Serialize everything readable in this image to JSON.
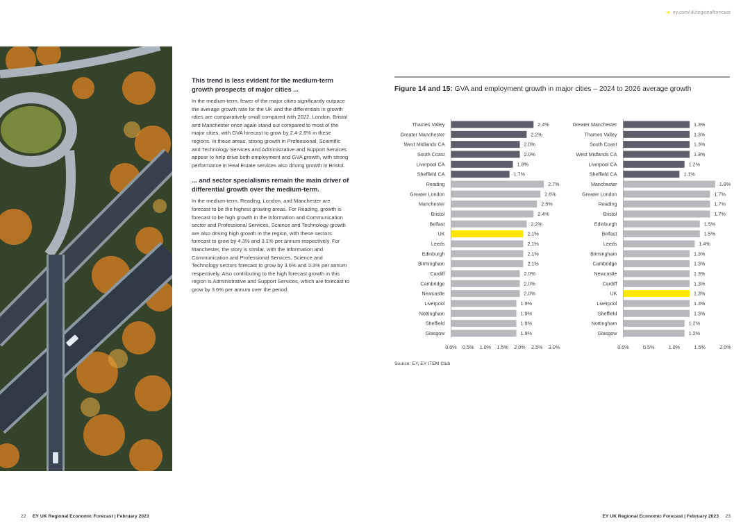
{
  "header": {
    "url": "ey.com/uk/regionalforecast"
  },
  "left_text": {
    "heading1": "This trend is less evident for the medium-term growth prospects of major cities ...",
    "para1": "In the medium-term, fewer of the major cities significantly outpace the average growth rate for the UK and the differentials in growth rates are comparatively small compared with 2022. London, Bristol and Manchester once again stand out compared to most of the major cities, with GVA forecast to grow by 2.4-2.6% in these regions. In these areas, strong growth in Professional, Scientific and Technology Services and Administrative and Support Services appear to help drive both employment and GVA growth, with strong performance in Real Estate services also driving growth in Bristol.",
    "heading2": "... and sector specialisms remain the main driver of differential growth over the medium-term.",
    "para2": "In the medium-term, Reading, London, and Manchester are forecast to be the highest growing areas. For Reading, growth is forecast to be high growth in the Information and Communication sector and Professional Services, Science and Technology growth are also driving high growth in the region, with these sectors forecast to grow by 4.3% and 3.1% per annum respectively. For Manchester, the story is similar, with the Information and Communication and Professional Services, Science and Technology sectors forecast to grow by 3.6% and 3.3% per annum respectively. Also contributing to the high forecast growth in this region is Administrative and Support Services, which are forecast to grow by 3.6% per annum over the period."
  },
  "figure": {
    "title_bold": "Figure 14 and 15:",
    "title_rest": "GVA and employment growth in major cities – 2024 to 2026 average growth",
    "source": "Source: EY, EY ITEM Club"
  },
  "colors": {
    "combined_authority": "#5b5e6b",
    "city": "#b9b9bd",
    "uk": "#ffe600",
    "accent": "#ffe600"
  },
  "chart_data": [
    {
      "type": "bar",
      "orientation": "horizontal",
      "title": "",
      "categories": [
        "Thames Valley",
        "Greater Manchester",
        "West Midlands CA",
        "South Coast",
        "Liverpool CA",
        "Sheffield CA",
        "Reading",
        "Greater London",
        "Manchester",
        "Bristol",
        "Belfast",
        "UK",
        "Leeds",
        "Edinburgh",
        "Birmingham",
        "Cardiff",
        "Cambridge",
        "Newcastle",
        "Liverpool",
        "Nottingham",
        "Sheffield",
        "Glasgow"
      ],
      "values": [
        2.4,
        2.2,
        2.0,
        2.0,
        1.8,
        1.7,
        2.7,
        2.6,
        2.5,
        2.4,
        2.2,
        2.1,
        2.1,
        2.1,
        2.1,
        2.0,
        2.0,
        2.0,
        1.9,
        1.9,
        1.9,
        1.9
      ],
      "labels": [
        "2.4%",
        "2.2%",
        "2.0%",
        "2.0%",
        "1.8%",
        "1.7%",
        "2.7%",
        "2.6%",
        "2.5%",
        "2.4%",
        "2.2%",
        "2.1%",
        "2.1%",
        "2.1%",
        "2.1%",
        "2.0%",
        "2.0%",
        "2.0%",
        "1.9%",
        "1.9%",
        "1.9%",
        "1.9%"
      ],
      "groups": [
        "ca",
        "ca",
        "ca",
        "ca",
        "ca",
        "ca",
        "city",
        "city",
        "city",
        "city",
        "city",
        "uk",
        "city",
        "city",
        "city",
        "city",
        "city",
        "city",
        "city",
        "city",
        "city",
        "city"
      ],
      "xlim": [
        0,
        3.0
      ],
      "ticks": [
        "0.0%",
        "0.5%",
        "1.0%",
        "1.5%",
        "2.0%",
        "2.5%",
        "3.0%"
      ],
      "grid": false
    },
    {
      "type": "bar",
      "orientation": "horizontal",
      "title": "",
      "categories": [
        "Greater Manchester",
        "Thames Valley",
        "South Coast",
        "West Midlands CA",
        "Liverpool CA",
        "Sheffield CA",
        "Manchester",
        "Greater London",
        "Reading",
        "Bristol",
        "Edinburgh",
        "Belfast",
        "Leeds",
        "Birmingham",
        "Cambridge",
        "Newcastle",
        "Cardiff",
        "UK",
        "Liverpool",
        "Sheffield",
        "Nottingham",
        "Glasgow"
      ],
      "values": [
        1.3,
        1.3,
        1.3,
        1.3,
        1.2,
        1.1,
        1.8,
        1.7,
        1.7,
        1.7,
        1.5,
        1.5,
        1.4,
        1.3,
        1.3,
        1.3,
        1.3,
        1.3,
        1.3,
        1.3,
        1.2,
        1.2
      ],
      "labels": [
        "1.3%",
        "1.3%",
        "1.3%",
        "1.3%",
        "1.2%",
        "1.1%",
        "1.8%",
        "1.7%",
        "1.7%",
        "1.7%",
        "1.5%",
        "1.5%",
        "1.4%",
        "1.3%",
        "1.3%",
        "1.3%",
        "1.3%",
        "1.3%",
        "1.3%",
        "1.3%",
        "1.2%",
        "1.2%"
      ],
      "groups": [
        "ca",
        "ca",
        "ca",
        "ca",
        "ca",
        "ca",
        "city",
        "city",
        "city",
        "city",
        "city",
        "city",
        "city",
        "city",
        "city",
        "city",
        "city",
        "uk",
        "city",
        "city",
        "city",
        "city"
      ],
      "xlim": [
        0,
        2.0
      ],
      "ticks": [
        "0.0%",
        "0.5%",
        "1.0%",
        "1.5%",
        "2.0%"
      ],
      "grid": false
    }
  ],
  "footer": {
    "left_page": "22",
    "left_text": "EY UK Regional Economic Forecast | February 2023",
    "right_text": "EY UK Regional Economic Forecast | February 2023",
    "right_page": "23"
  }
}
